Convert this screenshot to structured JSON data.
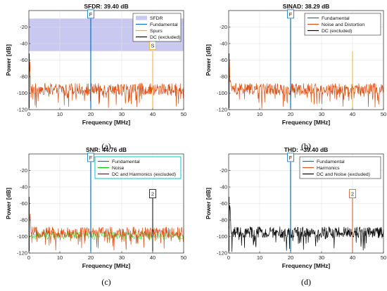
{
  "chart_data": [
    {
      "type": "line",
      "panel_label": "(a)",
      "title": "SFDR:  39.40 dB",
      "xlabel": "Frequency [MHz]",
      "ylabel": "Power [dB]",
      "xlim": [
        0,
        50
      ],
      "ylim": [
        -120,
        0
      ],
      "xticks": [
        "0",
        "10",
        "20",
        "30",
        "40",
        "50"
      ],
      "yticks": [
        "-20",
        "-40",
        "-60",
        "-80",
        "-100",
        "-120"
      ],
      "grid": true,
      "legend_position": "top-right",
      "noise_floor": -95,
      "shaded_band": {
        "name": "SFDR",
        "from": -9.7,
        "to": -49.1
      },
      "series": [
        {
          "name": "SFDR",
          "kind": "band"
        },
        {
          "name": "Fundamental",
          "kind": "spike",
          "x": 20,
          "peak": -9.7
        },
        {
          "name": "Spurs",
          "kind": "spike",
          "x": 40,
          "peak": -49.1
        },
        {
          "name": "DC (excluded)",
          "kind": "dc"
        }
      ],
      "markers": [
        {
          "text": "F",
          "x": 20,
          "y": -5
        },
        {
          "text": "S",
          "x": 40,
          "y": -43
        }
      ]
    },
    {
      "type": "line",
      "panel_label": "(b)",
      "title": "SINAD:  38.29 dB",
      "xlabel": "Frequency [MHz]",
      "ylabel": "Power [dB]",
      "xlim": [
        0,
        50
      ],
      "ylim": [
        -120,
        0
      ],
      "xticks": [
        "0",
        "10",
        "20",
        "30",
        "40",
        "50"
      ],
      "yticks": [
        "-20",
        "-40",
        "-60",
        "-80",
        "-100",
        "-120"
      ],
      "grid": true,
      "legend_position": "top-right",
      "noise_floor": -95,
      "series": [
        {
          "name": "Fundamental",
          "kind": "spike",
          "x": 20,
          "peak": -9.7
        },
        {
          "name": "Noise and Distortion",
          "kind": "spike",
          "x": 40,
          "peak": -49.1
        },
        {
          "name": "DC (excluded)",
          "kind": "dc"
        }
      ],
      "markers": [
        {
          "text": "F",
          "x": 20,
          "y": -5
        }
      ]
    },
    {
      "type": "line",
      "panel_label": "(c)",
      "title": "SNR:  44.76 dB",
      "xlabel": "Frequency [MHz]",
      "ylabel": "Power [dB]",
      "xlim": [
        0,
        50
      ],
      "ylim": [
        -120,
        0
      ],
      "xticks": [
        "0",
        "10",
        "20",
        "30",
        "40",
        "50"
      ],
      "yticks": [
        "-20",
        "-40",
        "-60",
        "-80",
        "-100",
        "-120"
      ],
      "grid": true,
      "legend_position": "top-right",
      "noise_floor": -95,
      "series": [
        {
          "name": "Fundamental",
          "kind": "spike",
          "x": 20,
          "peak": -9.7
        },
        {
          "name": "Noise",
          "kind": "noise"
        },
        {
          "name": "DC and Harmonics (excluded)",
          "kind": "spike",
          "x": 40,
          "peak": -49.1
        }
      ],
      "markers": [
        {
          "text": "F",
          "x": 20,
          "y": -5
        },
        {
          "text": "2",
          "x": 40,
          "y": -49
        }
      ]
    },
    {
      "type": "line",
      "panel_label": "(d)",
      "title": "THD:  −39.40 dB",
      "xlabel": "Frequency [MHz]",
      "ylabel": "Power [dB]",
      "xlim": [
        0,
        50
      ],
      "ylim": [
        -120,
        0
      ],
      "xticks": [
        "0",
        "10",
        "20",
        "30",
        "40",
        "50"
      ],
      "yticks": [
        "-20",
        "-40",
        "-60",
        "-80",
        "-100",
        "-120"
      ],
      "grid": true,
      "legend_position": "top-right",
      "noise_floor": -95,
      "series": [
        {
          "name": "Fundamental",
          "kind": "spike",
          "x": 20,
          "peak": -9.7
        },
        {
          "name": "Harmonics",
          "kind": "spike",
          "x": 40,
          "peak": -49.1
        },
        {
          "name": "DC and Noise (excluded)",
          "kind": "noise"
        }
      ],
      "markers": [
        {
          "text": "F",
          "x": 20,
          "y": -5
        },
        {
          "text": "2",
          "x": 40,
          "y": -49
        }
      ]
    }
  ],
  "colors": {
    "fundamental": "#0072BD",
    "spurs": "#EDB120",
    "noise": "#D95319",
    "dc": "#000000",
    "sfdr_band": "#C8C8F0",
    "snr_legend_border": "#00C8C8",
    "noise_and_distortion": "#D95319",
    "harmonics": "#D95319",
    "dc_harmonics": "#8B0040",
    "noise_green": "#00C800",
    "dc_noise": "#000000"
  }
}
